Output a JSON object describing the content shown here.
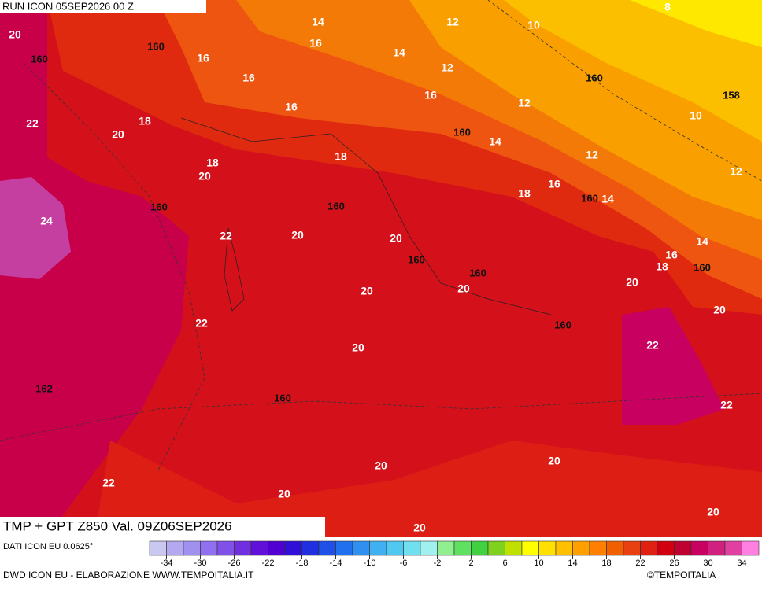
{
  "header": {
    "run": "RUN ICON 05SEP2026 00 Z"
  },
  "map": {
    "title": "TMP + GPT Z850 Val. 09Z06SEP2026",
    "temperature_labels": [
      20,
      14,
      12,
      10,
      8,
      16,
      14,
      16,
      12,
      16,
      16,
      12,
      16,
      18,
      22,
      20,
      10,
      14,
      18,
      12,
      18,
      20,
      12,
      16,
      18,
      14,
      24,
      22,
      20,
      20,
      14,
      16,
      18,
      20,
      20,
      20,
      20,
      22,
      22,
      20,
      22,
      20,
      20,
      22,
      20,
      20,
      20
    ],
    "height_labels": [
      160,
      160,
      160,
      158,
      160,
      160,
      160,
      160,
      160,
      160,
      160,
      160,
      162,
      160
    ]
  },
  "legend": {
    "colors": [
      "#c8c8f0",
      "#b4a8f0",
      "#a090f0",
      "#9070f0",
      "#8050e8",
      "#7030e0",
      "#6010d8",
      "#5000d0",
      "#3010d8",
      "#2030e0",
      "#2050e8",
      "#2070f0",
      "#3090f0",
      "#40b0f0",
      "#50c8f0",
      "#70e0f0",
      "#a0f0f0",
      "#90f090",
      "#60e060",
      "#40d040",
      "#80d020",
      "#c0e000",
      "#ffff00",
      "#ffe000",
      "#ffc000",
      "#ffa000",
      "#ff8000",
      "#f06000",
      "#e84010",
      "#e02010",
      "#d00010",
      "#c00030",
      "#c80060",
      "#d02080",
      "#e040a0",
      "#ff80e0"
    ],
    "ticks": [
      -34,
      -30,
      -26,
      -22,
      -18,
      -14,
      -10,
      -6,
      -2,
      2,
      6,
      10,
      14,
      18,
      22,
      26,
      30,
      34
    ]
  },
  "footer": {
    "source": "DATI ICON EU 0.0625°",
    "credit": "DWD ICON EU - ELABORAZIONE WWW.TEMPOITALIA.IT",
    "copyright": "©TEMPOITALIA"
  }
}
